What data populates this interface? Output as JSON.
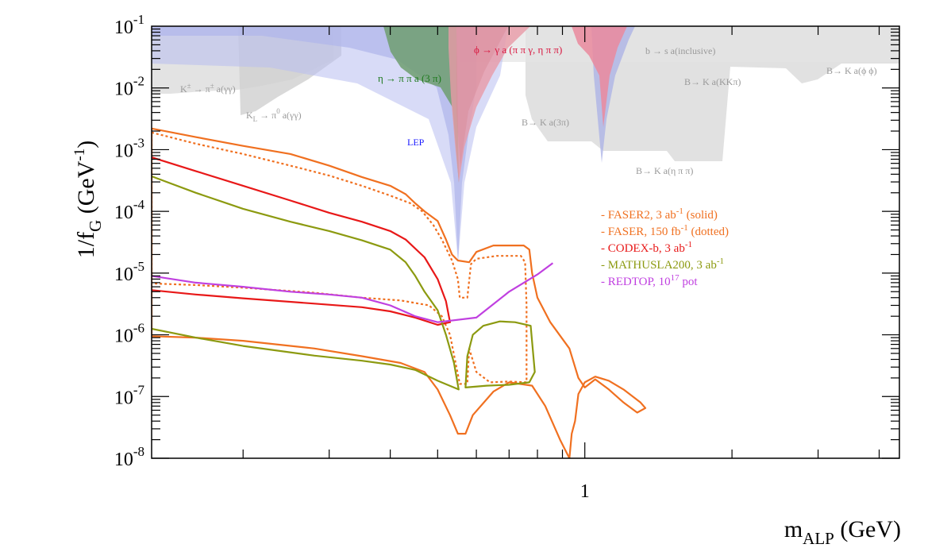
{
  "chart_data": {
    "type": "line",
    "title": "",
    "xlabel": {
      "main": "m",
      "sub": "ALP",
      "rest": " (GeV)"
    },
    "ylabel": {
      "main": "1/f",
      "sub": "G",
      "rest": " (GeV",
      "sup": "-1",
      "close": ")"
    },
    "x_scale": "log",
    "y_scale": "log",
    "xlim": [
      0.13,
      4.4
    ],
    "ylim": [
      1e-08,
      0.1
    ],
    "grid": false,
    "legend_position": "right",
    "x_tick_labels": [
      {
        "value": 1,
        "label": "1"
      }
    ],
    "y_tick_labels": [
      {
        "value": 0.1,
        "base": "10",
        "exp": "-1"
      },
      {
        "value": 0.01,
        "base": "10",
        "exp": "-2"
      },
      {
        "value": 0.001,
        "base": "10",
        "exp": "-3"
      },
      {
        "value": 0.0001,
        "base": "10",
        "exp": "-4"
      },
      {
        "value": 1e-05,
        "base": "10",
        "exp": "-5"
      },
      {
        "value": 1e-06,
        "base": "10",
        "exp": "-6"
      },
      {
        "value": 1e-07,
        "base": "10",
        "exp": "-7"
      },
      {
        "value": 1e-08,
        "base": "10",
        "exp": "-8"
      }
    ],
    "colors": {
      "faser": "#f07020",
      "codex": "#e81818",
      "mathusla": "#8c9a10",
      "redtop": "#c040e0",
      "lep": "#b4b8ec",
      "eta": "#7aa872",
      "phi": "#f0a0b0",
      "gray": "#dcdcdc",
      "lep_label": "#1a1aff",
      "eta_label": "#1e7a1e",
      "phi_label": "#d81840",
      "gray_label": "#9a9a9a"
    },
    "legend": [
      {
        "prefix": "- FASER2, 3 ab",
        "sup": "-1",
        "suffix": " (solid)",
        "color": "#f07020"
      },
      {
        "prefix": "- FASER, 150 fb",
        "sup": "-1",
        "suffix": " (dotted)",
        "color": "#f07020"
      },
      {
        "prefix": "- CODEX-b, 3 ab",
        "sup": "-1",
        "suffix": "",
        "color": "#e81818"
      },
      {
        "prefix": "- MATHUSLA200, 3 ab",
        "sup": "-1",
        "suffix": "",
        "color": "#8c9a10"
      },
      {
        "prefix": "- REDTOP, 10",
        "sup": "17",
        "suffix": " pot",
        "color": "#c040e0"
      }
    ],
    "annotations": {
      "lep": "LEP",
      "eta": "η → π π a (3 π)",
      "phi": "ϕ → γ a (π π γ, η π π)",
      "k_charged": "K",
      "k_charged_rest": "π",
      "k_charged_tail": "a(γγ)",
      "k_charged_pm": "±",
      "k_long": "K",
      "k_long_sub": "L",
      "k_long_rest": "→ π",
      "k_long_sup": "0",
      "k_long_tail": "a(γγ)",
      "b_s": "b → s a(inclusive)",
      "b_kkkpi": "B→ K a(KKπ)",
      "b_phiphi": "B→ K a(ϕ ϕ)",
      "b_3pi": "B→ K a(3π)",
      "b_etapipi": "B→ K a(η π π)"
    },
    "series": [
      {
        "name": "FASER2, 3 ab-1 (solid)",
        "style": "solid",
        "color": "#f07020",
        "closed": true,
        "points": [
          [
            0.13,
            0.0022
          ],
          [
            0.16,
            0.0016
          ],
          [
            0.2,
            0.00115
          ],
          [
            0.25,
            0.00085
          ],
          [
            0.3,
            0.00055
          ],
          [
            0.35,
            0.00036
          ],
          [
            0.4,
            0.00026
          ],
          [
            0.43,
            0.00019
          ],
          [
            0.45,
            0.000135
          ],
          [
            0.47,
            0.0001
          ],
          [
            0.5,
            7e-05
          ],
          [
            0.52,
            3.5e-05
          ],
          [
            0.535,
            2e-05
          ],
          [
            0.55,
            1.6e-05
          ],
          [
            0.58,
            1.5e-05
          ],
          [
            0.6,
            2.2e-05
          ],
          [
            0.65,
            2.8e-05
          ],
          [
            0.75,
            2.8e-05
          ],
          [
            0.77,
            2.4e-05
          ],
          [
            0.78,
            1e-05
          ],
          [
            0.8,
            4e-06
          ],
          [
            0.85,
            1.6e-06
          ],
          [
            0.93,
            6e-07
          ],
          [
            0.97,
            2e-07
          ],
          [
            1.0,
            1.4e-07
          ],
          [
            1.05,
            1.9e-07
          ],
          [
            1.12,
            1.3e-07
          ],
          [
            1.2,
            8e-08
          ],
          [
            1.28,
            5.5e-08
          ],
          [
            1.33,
            6.5e-08
          ],
          [
            1.3,
            8e-08
          ],
          [
            1.2,
            1.3e-07
          ],
          [
            1.12,
            1.8e-07
          ],
          [
            1.05,
            2.1e-07
          ],
          [
            1.0,
            1.7e-07
          ],
          [
            0.97,
            1.1e-07
          ],
          [
            0.955,
            4e-08
          ],
          [
            0.94,
            2.5e-08
          ],
          [
            0.93,
            1e-08
          ],
          [
            0.89,
            2e-08
          ],
          [
            0.83,
            7e-08
          ],
          [
            0.78,
            1.5e-07
          ],
          [
            0.7,
            1.7e-07
          ],
          [
            0.65,
            1.2e-07
          ],
          [
            0.59,
            5e-08
          ],
          [
            0.57,
            2.5e-08
          ],
          [
            0.55,
            2.5e-08
          ],
          [
            0.53,
            5e-08
          ],
          [
            0.5,
            1.3e-07
          ],
          [
            0.47,
            2.5e-07
          ],
          [
            0.42,
            3.5e-07
          ],
          [
            0.35,
            4.5e-07
          ],
          [
            0.28,
            6e-07
          ],
          [
            0.2,
            8e-07
          ],
          [
            0.16,
            9e-07
          ],
          [
            0.13,
            9.5e-07
          ]
        ]
      },
      {
        "name": "FASER, 150 fb-1 (dotted)",
        "style": "dotted",
        "color": "#f07020",
        "closed": true,
        "points": [
          [
            0.13,
            0.0019
          ],
          [
            0.16,
            0.00125
          ],
          [
            0.2,
            0.00085
          ],
          [
            0.25,
            0.00055
          ],
          [
            0.3,
            0.00038
          ],
          [
            0.35,
            0.00026
          ],
          [
            0.4,
            0.00018
          ],
          [
            0.44,
            0.000135
          ],
          [
            0.465,
            0.0001
          ],
          [
            0.49,
            6e-05
          ],
          [
            0.51,
            3.5e-05
          ],
          [
            0.535,
            1.6e-05
          ],
          [
            0.55,
            8e-06
          ],
          [
            0.555,
            4e-06
          ],
          [
            0.575,
            4e-06
          ],
          [
            0.585,
            1.4e-05
          ],
          [
            0.6,
            1.7e-05
          ],
          [
            0.66,
            1.9e-05
          ],
          [
            0.74,
            1.9e-05
          ],
          [
            0.755,
            1.5e-05
          ],
          [
            0.76,
            3e-06
          ],
          [
            0.76,
            1.7e-07
          ],
          [
            0.7,
            1.75e-07
          ],
          [
            0.64,
            1.7e-07
          ],
          [
            0.6,
            2.5e-07
          ],
          [
            0.58,
            6e-07
          ],
          [
            0.575,
            1.6e-07
          ],
          [
            0.555,
            1.6e-07
          ],
          [
            0.53,
            1e-06
          ],
          [
            0.51,
            2e-06
          ],
          [
            0.48,
            3e-06
          ],
          [
            0.42,
            3.6e-06
          ],
          [
            0.35,
            4e-06
          ],
          [
            0.28,
            4.8e-06
          ],
          [
            0.2,
            5.8e-06
          ],
          [
            0.16,
            6.4e-06
          ],
          [
            0.13,
            6.8e-06
          ]
        ]
      },
      {
        "name": "CODEX-b, 3 ab-1",
        "style": "solid",
        "color": "#e81818",
        "closed": false,
        "points": [
          [
            0.13,
            0.00075
          ],
          [
            0.16,
            0.00045
          ],
          [
            0.2,
            0.00026
          ],
          [
            0.25,
            0.00015
          ],
          [
            0.3,
            9.5e-05
          ],
          [
            0.35,
            6.8e-05
          ],
          [
            0.4,
            4.8e-05
          ],
          [
            0.43,
            3.5e-05
          ],
          [
            0.47,
            1.8e-05
          ],
          [
            0.5,
            8e-06
          ],
          [
            0.52,
            3.5e-06
          ],
          [
            0.53,
            1.6e-06
          ],
          [
            0.5,
            1.45e-06
          ],
          [
            0.45,
            1.9e-06
          ],
          [
            0.4,
            2.4e-06
          ],
          [
            0.35,
            2.8e-06
          ],
          [
            0.28,
            3.2e-06
          ],
          [
            0.2,
            3.9e-06
          ],
          [
            0.16,
            4.5e-06
          ],
          [
            0.13,
            5.3e-06
          ]
        ]
      },
      {
        "name": "MATHUSLA200, 3 ab-1",
        "style": "solid",
        "color": "#8c9a10",
        "closed": false,
        "points": [
          [
            0.13,
            0.00037
          ],
          [
            0.16,
            0.0002
          ],
          [
            0.2,
            0.00011
          ],
          [
            0.25,
            6.8e-05
          ],
          [
            0.3,
            4.8e-05
          ],
          [
            0.35,
            3.4e-05
          ],
          [
            0.4,
            2.4e-05
          ],
          [
            0.43,
            1.5e-05
          ],
          [
            0.45,
            9e-06
          ],
          [
            0.47,
            5e-06
          ],
          [
            0.5,
            2.5e-06
          ],
          [
            0.52,
            1e-06
          ],
          [
            0.54,
            3.5e-07
          ],
          [
            0.552,
            1.3e-07
          ],
          [
            0.5,
            1.8e-07
          ],
          [
            0.45,
            2.7e-07
          ],
          [
            0.4,
            3.3e-07
          ],
          [
            0.35,
            3.8e-07
          ],
          [
            0.28,
            4.6e-07
          ],
          [
            0.2,
            6.6e-07
          ],
          [
            0.16,
            9e-07
          ],
          [
            0.13,
            1.25e-06
          ]
        ]
      },
      {
        "name": "MATHUSLA200, 3 ab-1 (high mass)",
        "style": "solid",
        "color": "#8c9a10",
        "closed": true,
        "points": [
          [
            0.57,
            1.4e-07
          ],
          [
            0.575,
            4.5e-07
          ],
          [
            0.59,
            1e-06
          ],
          [
            0.62,
            1.4e-06
          ],
          [
            0.67,
            1.65e-06
          ],
          [
            0.72,
            1.6e-06
          ],
          [
            0.775,
            1.4e-06
          ],
          [
            0.79,
            2.5e-07
          ],
          [
            0.77,
            1.7e-07
          ],
          [
            0.7,
            1.55e-07
          ],
          [
            0.63,
            1.5e-07
          ],
          [
            0.57,
            1.4e-07
          ]
        ]
      },
      {
        "name": "REDTOP, 10^17 pot",
        "style": "solid",
        "color": "#c040e0",
        "closed": false,
        "points": [
          [
            0.13,
            9e-06
          ],
          [
            0.16,
            7e-06
          ],
          [
            0.2,
            6e-06
          ],
          [
            0.25,
            5e-06
          ],
          [
            0.3,
            4.5e-06
          ],
          [
            0.35,
            4e-06
          ],
          [
            0.4,
            3e-06
          ],
          [
            0.45,
            2e-06
          ],
          [
            0.5,
            1.6e-06
          ],
          [
            0.6,
            1.9e-06
          ],
          [
            0.7,
            5e-06
          ],
          [
            0.8,
            9.5e-06
          ],
          [
            0.86,
            1.45e-05
          ]
        ]
      }
    ]
  }
}
